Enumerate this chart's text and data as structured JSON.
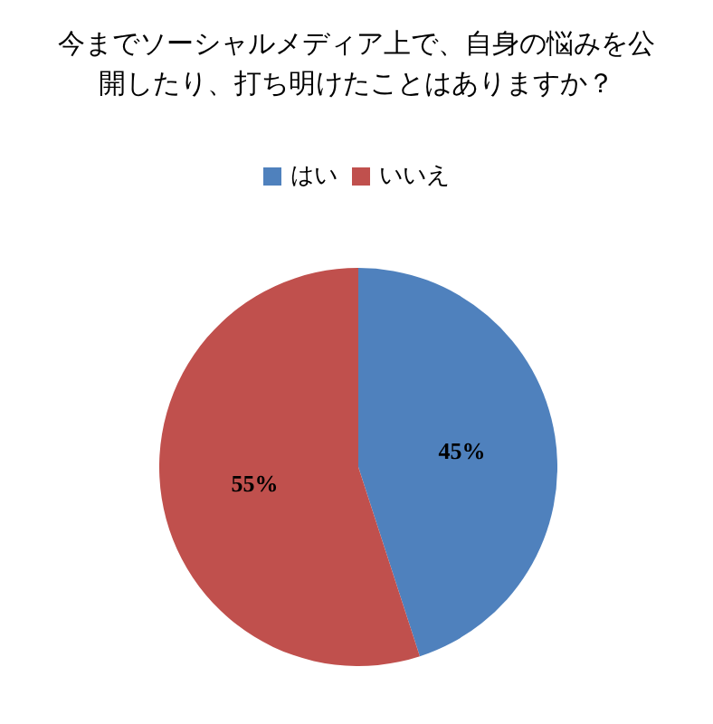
{
  "chart_data": {
    "type": "pie",
    "title": "今までソーシャルメディア上で、自身の悩みを公開したり、打ち明けたことはありますか？",
    "categories": [
      "はい",
      "いいえ"
    ],
    "values": [
      45,
      55
    ],
    "colors": [
      "#4f81bd",
      "#c0504d"
    ],
    "value_labels": [
      "45%",
      "55%"
    ],
    "legend": "top"
  }
}
